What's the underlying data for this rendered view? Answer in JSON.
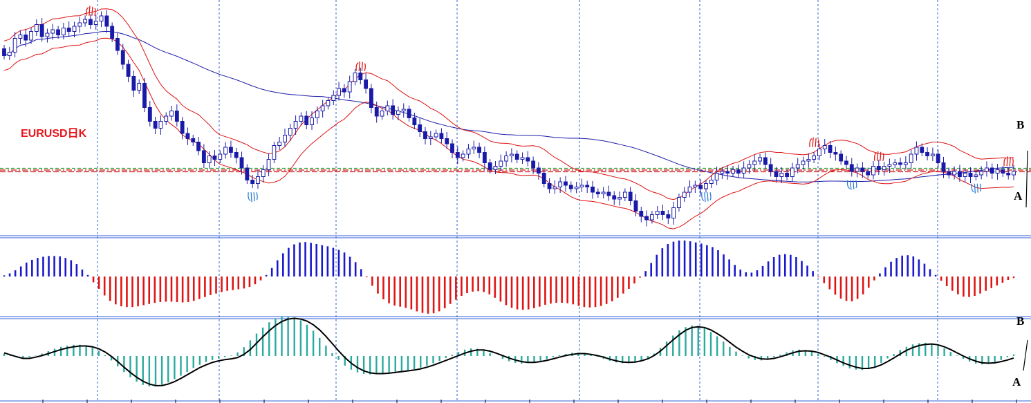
{
  "chart_data": [
    {
      "type": "candlestick",
      "title": "EURUSD日K",
      "symbol": "EURUSD",
      "timeframe": "日K",
      "grid": true,
      "colors": {
        "bull_candle": "#ffffff",
        "bear_candle": "#1a1aa8",
        "wick": "#1a1aa8",
        "envelope": "#dd1111",
        "long_ma": "#1a1aa8",
        "grid": "#2f5fd6"
      },
      "close": [
        1.46,
        1.462,
        1.47,
        1.472,
        1.469,
        1.474,
        1.478,
        1.471,
        1.473,
        1.475,
        1.472,
        1.476,
        1.474,
        1.477,
        1.479,
        1.481,
        1.478,
        1.48,
        1.483,
        1.477,
        1.47,
        1.463,
        1.455,
        1.448,
        1.44,
        1.444,
        1.43,
        1.422,
        1.418,
        1.422,
        1.425,
        1.428,
        1.422,
        1.415,
        1.412,
        1.41,
        1.405,
        1.398,
        1.402,
        1.4,
        1.403,
        1.407,
        1.404,
        1.401,
        1.395,
        1.388,
        1.386,
        1.39,
        1.394,
        1.4,
        1.408,
        1.41,
        1.414,
        1.418,
        1.422,
        1.425,
        1.42,
        1.424,
        1.428,
        1.431,
        1.434,
        1.437,
        1.441,
        1.439,
        1.445,
        1.45,
        1.446,
        1.441,
        1.43,
        1.425,
        1.428,
        1.431,
        1.426,
        1.428,
        1.429,
        1.424,
        1.42,
        1.416,
        1.412,
        1.413,
        1.415,
        1.412,
        1.409,
        1.404,
        1.401,
        1.403,
        1.406,
        1.407,
        1.404,
        1.398,
        1.394,
        1.396,
        1.399,
        1.402,
        1.403,
        1.4,
        1.401,
        1.399,
        1.395,
        1.392,
        1.386,
        1.383,
        1.384,
        1.387,
        1.385,
        1.383,
        1.384,
        1.385,
        1.384,
        1.381,
        1.38,
        1.381,
        1.379,
        1.377,
        1.378,
        1.381,
        1.376,
        1.37,
        1.367,
        1.365,
        1.368,
        1.37,
        1.368,
        1.366,
        1.372,
        1.378,
        1.381,
        1.384,
        1.385,
        1.383,
        1.386,
        1.388,
        1.392,
        1.393,
        1.392,
        1.394,
        1.392,
        1.395,
        1.397,
        1.399,
        1.401,
        1.397,
        1.393,
        1.39,
        1.392,
        1.39,
        1.395,
        1.397,
        1.399,
        1.4,
        1.402,
        1.406,
        1.408,
        1.404,
        1.403,
        1.399,
        1.397,
        1.393,
        1.395,
        1.393,
        1.391,
        1.396,
        1.394,
        1.396,
        1.397,
        1.398,
        1.397,
        1.398,
        1.403,
        1.407,
        1.404,
        1.402,
        1.403,
        1.398,
        1.393,
        1.391,
        1.393,
        1.39,
        1.392,
        1.39,
        1.391,
        1.393,
        1.395,
        1.392,
        1.394,
        1.392,
        1.391,
        1.393
      ],
      "series": [
        {
          "values": "envelope upper"
        },
        {
          "values": "envelope lower"
        },
        {
          "values": "long moving average"
        }
      ],
      "price_lines": [
        {
          "color": "#2ca02c"
        },
        {
          "color": "#cc1111"
        },
        {
          "color": "#cc1111"
        }
      ],
      "fractal_up_markers": [
        16,
        66,
        150,
        162,
        186,
        199
      ],
      "fractal_down_markers": [
        46,
        130,
        157,
        180,
        206
      ],
      "annotations": [
        {
          "text": "B"
        },
        {
          "text": "A"
        }
      ]
    },
    {
      "type": "bar",
      "grid": true,
      "colors": {
        "positive": "#1a1acc",
        "negative": "#e01414"
      },
      "values": [
        0.3,
        0.8,
        1.6,
        2.6,
        3.6,
        4.3,
        4.8,
        5.1,
        5.3,
        5.3,
        5.2,
        4.8,
        4.2,
        3.2,
        1.8,
        0.4,
        -1.5,
        -3.2,
        -4.9,
        -6.3,
        -7.2,
        -7.7,
        -7.9,
        -7.9,
        -7.7,
        -7.4,
        -7.1,
        -6.8,
        -6.6,
        -6.5,
        -6.5,
        -6.6,
        -6.7,
        -6.6,
        -6.3,
        -5.8,
        -5.3,
        -4.8,
        -4.4,
        -4.0,
        -3.7,
        -3.5,
        -3.3,
        -3.1,
        -2.7,
        -2.0,
        -1.0,
        0.4,
        2.2,
        4.2,
        6.0,
        7.4,
        8.3,
        8.8,
        8.9,
        8.7,
        8.4,
        8.1,
        7.8,
        7.4,
        6.9,
        6.2,
        5.1,
        3.7,
        1.9,
        -0.2,
        -2.4,
        -4.4,
        -5.9,
        -6.9,
        -7.5,
        -7.8,
        -8.1,
        -8.5,
        -9.0,
        -9.4,
        -9.6,
        -9.5,
        -9.0,
        -8.2,
        -7.1,
        -6.0,
        -5.0,
        -4.3,
        -3.9,
        -3.8,
        -4.0,
        -4.6,
        -5.5,
        -6.5,
        -7.4,
        -8.1,
        -8.5,
        -8.6,
        -8.5,
        -8.2,
        -7.8,
        -7.3,
        -7.0,
        -6.8,
        -6.8,
        -6.9,
        -7.2,
        -7.6,
        -7.9,
        -8.0,
        -7.9,
        -7.6,
        -7.1,
        -6.4,
        -5.5,
        -4.4,
        -3.2,
        -1.8,
        -0.3,
        1.4,
        3.5,
        5.6,
        7.3,
        8.4,
        9.0,
        9.3,
        9.3,
        9.1,
        8.8,
        8.5,
        8.1,
        7.6,
        6.8,
        5.7,
        4.4,
        3.0,
        1.8,
        1.1,
        1.0,
        1.6,
        2.7,
        3.9,
        5.0,
        5.6,
        5.8,
        5.6,
        5.0,
        4.0,
        2.8,
        1.4,
        -0.2,
        -1.7,
        -3.3,
        -4.7,
        -5.7,
        -6.3,
        -6.4,
        -5.8,
        -4.6,
        -2.9,
        -1.0,
        0.8,
        2.4,
        3.8,
        4.8,
        5.4,
        5.5,
        5.2,
        4.4,
        3.3,
        1.9,
        0.4,
        -1.1,
        -2.5,
        -3.7,
        -4.6,
        -5.2,
        -5.3,
        -5.0,
        -4.4,
        -3.7,
        -3.0,
        -2.3,
        -1.6,
        -0.9,
        -0.4
      ]
    },
    {
      "type": "bar",
      "grid": true,
      "colors": {
        "bars": "#2aaa9e",
        "signal_line": "#000000"
      },
      "values": [
        0.6,
        0.2,
        -0.3,
        -0.5,
        -0.3,
        0.1,
        0.6,
        1.2,
        1.8,
        2.3,
        2.6,
        2.8,
        2.8,
        2.6,
        2.1,
        1.3,
        0.2,
        -1.1,
        -2.6,
        -4.0,
        -5.3,
        -6.4,
        -7.2,
        -7.6,
        -7.6,
        -7.2,
        -6.6,
        -5.8,
        -4.9,
        -4.0,
        -3.0,
        -2.2,
        -1.5,
        -1.0,
        -0.6,
        -0.3,
        0.1,
        0.9,
        2.2,
        3.9,
        5.6,
        7.1,
        8.4,
        9.3,
        9.8,
        9.9,
        9.6,
        8.9,
        7.8,
        6.3,
        4.5,
        2.6,
        0.7,
        -1.0,
        -2.4,
        -3.4,
        -4.1,
        -4.5,
        -4.6,
        -4.5,
        -4.3,
        -4.1,
        -3.9,
        -3.8,
        -3.6,
        -3.3,
        -2.9,
        -2.4,
        -1.8,
        -1.2,
        -0.5,
        0.3,
        1.0,
        1.6,
        1.9,
        1.8,
        1.4,
        0.7,
        0.0,
        -0.7,
        -1.3,
        -1.7,
        -1.9,
        -1.8,
        -1.6,
        -1.2,
        -0.8,
        -0.3,
        0.2,
        0.5,
        0.8,
        0.8,
        0.6,
        0.3,
        -0.2,
        -0.7,
        -1.2,
        -1.6,
        -1.8,
        -1.8,
        -1.6,
        -1.2,
        -0.5,
        0.6,
        2.0,
        3.6,
        5.1,
        6.4,
        7.2,
        7.6,
        7.5,
        6.9,
        6.0,
        4.9,
        3.6,
        2.3,
        1.1,
        0.1,
        -0.6,
        -1.0,
        -1.1,
        -0.8,
        -0.3,
        0.3,
        0.9,
        1.4,
        1.6,
        1.5,
        1.1,
        0.5,
        -0.2,
        -1.0,
        -1.8,
        -2.5,
        -3.1,
        -3.4,
        -3.5,
        -3.2,
        -2.6,
        -1.7,
        -0.6,
        0.5,
        1.5,
        2.3,
        2.9,
        3.2,
        3.3,
        3.1,
        2.6,
        1.9,
        1.0,
        0.1,
        -0.7,
        -1.4,
        -1.9,
        -2.1,
        -2.0,
        -1.6,
        -1.0,
        -0.3,
        0.4
      ],
      "signal": [
        0.8,
        0.3,
        -0.2,
        -0.6,
        -0.6,
        -0.3,
        0.1,
        0.6,
        1.1,
        1.6,
        2.0,
        2.3,
        2.5,
        2.5,
        2.3,
        1.8,
        1.0,
        -0.1,
        -1.4,
        -2.8,
        -4.1,
        -5.3,
        -6.3,
        -7.0,
        -7.4,
        -7.4,
        -7.0,
        -6.4,
        -5.6,
        -4.7,
        -3.8,
        -2.9,
        -2.2,
        -1.6,
        -1.2,
        -0.9,
        -0.7,
        -0.4,
        0.4,
        1.6,
        3.2,
        4.8,
        6.3,
        7.6,
        8.6,
        9.2,
        9.4,
        9.2,
        8.7,
        7.8,
        6.5,
        4.9,
        3.1,
        1.3,
        -0.4,
        -1.8,
        -2.9,
        -3.7,
        -4.2,
        -4.4,
        -4.4,
        -4.3,
        -4.1,
        -3.9,
        -3.7,
        -3.5,
        -3.2,
        -2.8,
        -2.3,
        -1.7,
        -1.1,
        -0.5,
        0.1,
        0.7,
        1.2,
        1.5,
        1.5,
        1.2,
        0.7,
        0.1,
        -0.5,
        -1.0,
        -1.4,
        -1.6,
        -1.6,
        -1.4,
        -1.1,
        -0.7,
        -0.3,
        0.1,
        0.4,
        0.6,
        0.6,
        0.4,
        0.1,
        -0.3,
        -0.8,
        -1.2,
        -1.5,
        -1.6,
        -1.5,
        -1.2,
        -0.7,
        0.1,
        1.2,
        2.6,
        4.0,
        5.3,
        6.4,
        7.1,
        7.3,
        7.1,
        6.5,
        5.6,
        4.6,
        3.4,
        2.2,
        1.2,
        0.3,
        -0.3,
        -0.7,
        -0.8,
        -0.6,
        -0.2,
        0.3,
        0.8,
        1.2,
        1.3,
        1.2,
        0.9,
        0.3,
        -0.3,
        -1.0,
        -1.7,
        -2.3,
        -2.8,
        -3.1,
        -3.1,
        -2.8,
        -2.2,
        -1.4,
        -0.5,
        0.5,
        1.4,
        2.1,
        2.6,
        2.9,
        3.0,
        2.8,
        2.3,
        1.6,
        0.8,
        0.0,
        -0.7,
        -1.3,
        -1.7,
        -1.8,
        -1.7,
        -1.4,
        -1.0,
        -0.5
      ],
      "annotations": [
        {
          "text": "B"
        },
        {
          "text": "A"
        }
      ]
    }
  ]
}
